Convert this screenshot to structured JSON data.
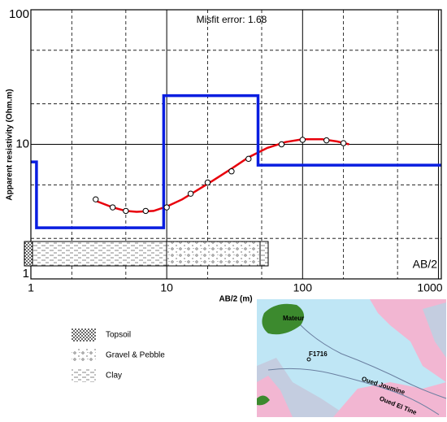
{
  "chart_data": {
    "type": "line",
    "annotation": "Misfit error: 1.68",
    "corner_label": "AB/2",
    "xlabel": "AB/2 (m)",
    "ylabel": "Apparent resistivity (Ohm.m)",
    "xscale": "log",
    "yscale": "log",
    "xlim": [
      1,
      1050
    ],
    "ylim": [
      1,
      100
    ],
    "xticks": [
      1,
      10,
      100,
      1000
    ],
    "yticks": [
      1,
      10,
      100
    ],
    "xminor": [
      2,
      5,
      20,
      50,
      200,
      500
    ],
    "yminor": [
      2,
      5,
      20,
      50
    ],
    "grid": true,
    "series": [
      {
        "style": "points",
        "color": "#000000",
        "x": [
          3,
          4,
          5,
          7,
          10,
          15,
          20,
          30,
          40,
          70,
          100,
          150,
          200
        ],
        "values": [
          3.9,
          3.4,
          3.2,
          3.2,
          3.4,
          4.3,
          5.2,
          6.3,
          7.8,
          10,
          10.8,
          10.7,
          10.2
        ]
      },
      {
        "style": "line",
        "color": "#e8000b",
        "x": [
          3,
          4,
          5,
          6,
          8,
          10,
          13,
          17,
          22,
          30,
          40,
          55,
          75,
          100,
          140,
          180,
          220
        ],
        "values": [
          3.8,
          3.4,
          3.2,
          3.15,
          3.2,
          3.45,
          3.9,
          4.6,
          5.4,
          6.6,
          8,
          9.4,
          10.4,
          10.9,
          10.9,
          10.5,
          10
        ]
      },
      {
        "style": "line",
        "color": "#0a1ee0",
        "x": [
          1,
          1.1,
          1.1,
          9.5,
          9.5,
          47,
          47,
          1050
        ],
        "values": [
          7.4,
          7.4,
          2.4,
          2.4,
          23,
          23,
          7,
          7
        ]
      }
    ]
  },
  "legend": {
    "items": [
      "Topsoil",
      "Gravel & Pebble",
      "Clay"
    ]
  },
  "map": {
    "labels": [
      "Mateur",
      "F1716",
      "Oued Joumine",
      "Oued El Tine"
    ]
  }
}
